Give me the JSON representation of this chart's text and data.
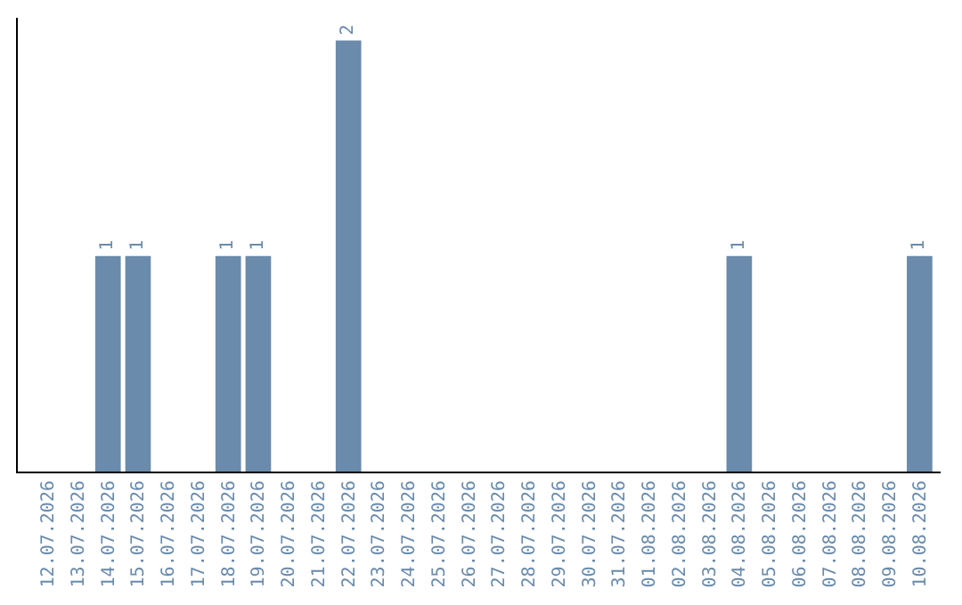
{
  "chart_data": {
    "type": "bar",
    "categories": [
      "12.07.2026",
      "13.07.2026",
      "14.07.2026",
      "15.07.2026",
      "16.07.2026",
      "17.07.2026",
      "18.07.2026",
      "19.07.2026",
      "20.07.2026",
      "21.07.2026",
      "22.07.2026",
      "23.07.2026",
      "24.07.2026",
      "25.07.2026",
      "26.07.2026",
      "27.07.2026",
      "28.07.2026",
      "29.07.2026",
      "30.07.2026",
      "31.07.2026",
      "01.08.2026",
      "02.08.2026",
      "03.08.2026",
      "04.08.2026",
      "05.08.2026",
      "06.08.2026",
      "07.08.2026",
      "08.08.2026",
      "09.08.2026",
      "10.08.2026"
    ],
    "values": [
      0,
      0,
      1,
      1,
      0,
      0,
      1,
      1,
      0,
      0,
      2,
      0,
      0,
      0,
      0,
      0,
      0,
      0,
      0,
      0,
      0,
      0,
      0,
      1,
      0,
      0,
      0,
      0,
      0,
      1
    ],
    "value_labels": [
      null,
      null,
      "1",
      "1",
      null,
      null,
      "1",
      "1",
      null,
      null,
      "2",
      null,
      null,
      null,
      null,
      null,
      null,
      null,
      null,
      null,
      null,
      null,
      null,
      "1",
      null,
      null,
      null,
      null,
      null,
      "1"
    ],
    "color": "#6a8bab",
    "tick_labels": "x"
  }
}
